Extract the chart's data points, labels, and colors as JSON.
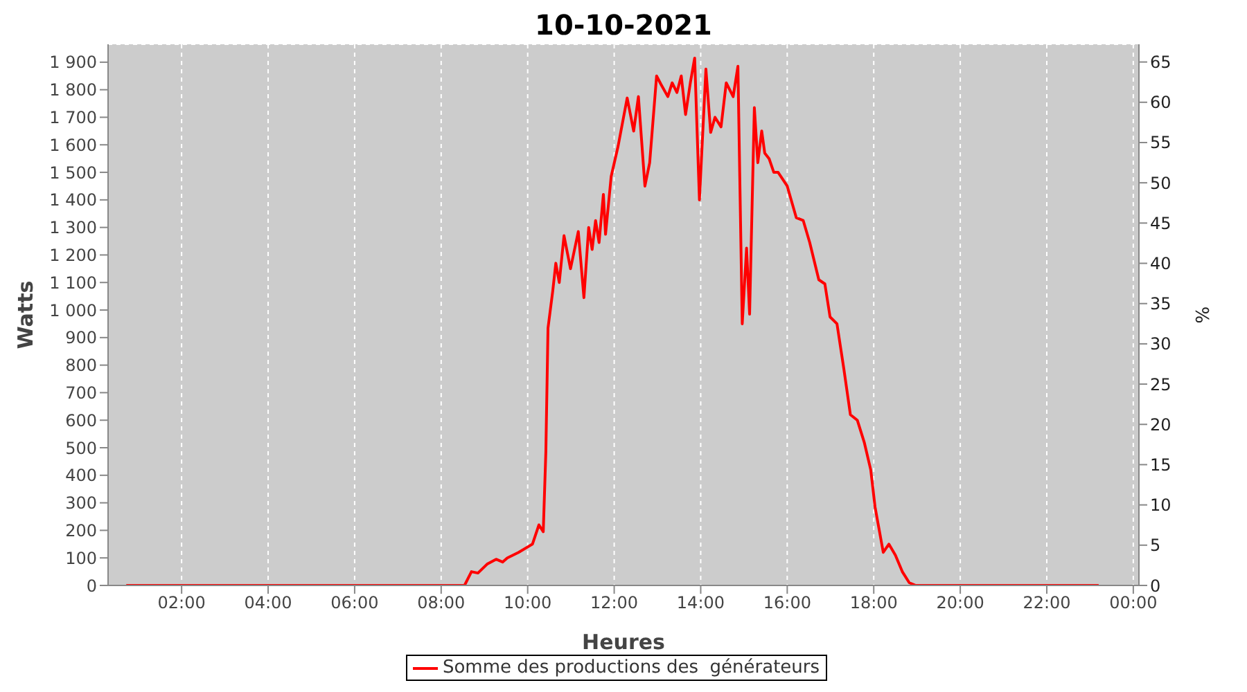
{
  "chart_data": {
    "type": "line",
    "title": "10-10-2021",
    "xlabel": "Heures",
    "ylabel": "Watts",
    "y2label": "%",
    "x": [
      0.72,
      8.54,
      8.7,
      8.85,
      9.06,
      9.27,
      9.42,
      9.53,
      9.79,
      10.11,
      10.26,
      10.36,
      10.42,
      10.47,
      10.58,
      10.65,
      10.73,
      10.84,
      10.99,
      11.17,
      11.3,
      11.41,
      11.49,
      11.57,
      11.65,
      11.75,
      11.8,
      11.93,
      12.09,
      12.3,
      12.45,
      12.56,
      12.71,
      12.82,
      12.98,
      13.08,
      13.24,
      13.34,
      13.45,
      13.55,
      13.65,
      13.76,
      13.86,
      13.97,
      14.12,
      14.23,
      14.33,
      14.47,
      14.59,
      14.75,
      14.86,
      14.96,
      15.06,
      15.13,
      15.24,
      15.32,
      15.41,
      15.48,
      15.58,
      15.69,
      15.79,
      16.0,
      16.21,
      16.37,
      16.52,
      16.73,
      16.87,
      16.99,
      17.15,
      17.31,
      17.46,
      17.62,
      17.78,
      17.93,
      18.03,
      18.22,
      18.35,
      18.5,
      18.66,
      18.82,
      18.97,
      23.2
    ],
    "series": [
      {
        "name": "Somme des productions des  générateurs",
        "color": "#ff0000",
        "values": [
          0,
          0,
          50,
          45,
          77,
          95,
          85,
          100,
          120,
          150,
          220,
          195,
          485,
          935,
          1070,
          1170,
          1100,
          1270,
          1150,
          1285,
          1045,
          1300,
          1220,
          1325,
          1245,
          1420,
          1275,
          1485,
          1595,
          1770,
          1650,
          1775,
          1450,
          1535,
          1850,
          1820,
          1775,
          1825,
          1790,
          1850,
          1710,
          1825,
          1915,
          1400,
          1875,
          1645,
          1700,
          1665,
          1825,
          1775,
          1885,
          950,
          1225,
          985,
          1735,
          1535,
          1650,
          1570,
          1550,
          1500,
          1500,
          1450,
          1335,
          1325,
          1245,
          1110,
          1095,
          975,
          950,
          785,
          620,
          600,
          520,
          420,
          285,
          120,
          150,
          110,
          50,
          10,
          0,
          0
        ]
      }
    ],
    "xlim": [
      0.3,
      24.13
    ],
    "xticks": [
      {
        "value": 2,
        "label": "02:00"
      },
      {
        "value": 4,
        "label": "04:00"
      },
      {
        "value": 6,
        "label": "06:00"
      },
      {
        "value": 8,
        "label": "08:00"
      },
      {
        "value": 10,
        "label": "10:00"
      },
      {
        "value": 12,
        "label": "12:00"
      },
      {
        "value": 14,
        "label": "14:00"
      },
      {
        "value": 16,
        "label": "16:00"
      },
      {
        "value": 18,
        "label": "18:00"
      },
      {
        "value": 20,
        "label": "20:00"
      },
      {
        "value": 22,
        "label": "22:00"
      },
      {
        "value": 24,
        "label": "00:00"
      }
    ],
    "ylim": [
      0,
      1965
    ],
    "yticks": [
      0,
      100,
      200,
      300,
      400,
      500,
      600,
      700,
      800,
      900,
      {
        "value": 1000,
        "label": "1 000"
      },
      {
        "value": 1100,
        "label": "1 100"
      },
      {
        "value": 1200,
        "label": "1 200"
      },
      {
        "value": 1300,
        "label": "1 300"
      },
      {
        "value": 1400,
        "label": "1 400"
      },
      {
        "value": 1500,
        "label": "1 500"
      },
      {
        "value": 1600,
        "label": "1 600"
      },
      {
        "value": 1700,
        "label": "1 700"
      },
      {
        "value": 1800,
        "label": "1 800"
      },
      {
        "value": 1900,
        "label": "1 900"
      }
    ],
    "y2lim": [
      0,
      67.2
    ],
    "y2ticks": [
      0,
      5,
      10,
      15,
      20,
      25,
      30,
      35,
      40,
      45,
      50,
      55,
      60,
      65
    ],
    "grid": true,
    "legend": "bottom",
    "marker": "none",
    "line_style": "solid"
  }
}
